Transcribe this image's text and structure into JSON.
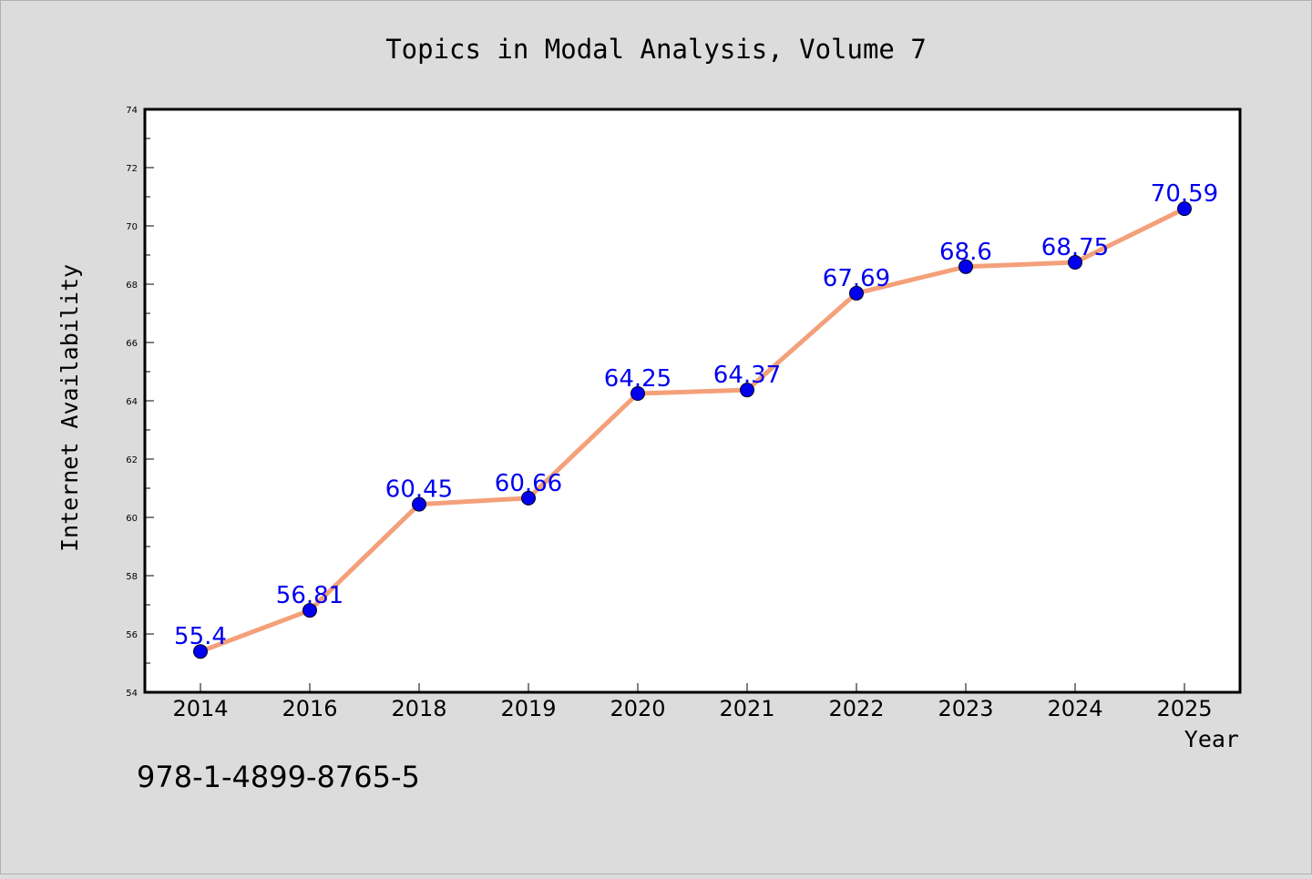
{
  "chart_data": {
    "type": "line",
    "title": "Topics in Modal Analysis, Volume 7",
    "xlabel": "Year",
    "ylabel": "Internet Availability",
    "categories": [
      "2014",
      "2016",
      "2018",
      "2019",
      "2020",
      "2021",
      "2022",
      "2023",
      "2024",
      "2025"
    ],
    "series": [
      {
        "values": [
          55.4,
          56.81,
          60.45,
          60.66,
          64.25,
          64.37,
          67.69,
          68.6,
          68.75,
          70.59
        ],
        "data_labels": [
          "55.4",
          "56.81",
          "60.45",
          "60.66",
          "64.25",
          "64.37",
          "67.69",
          "68.6",
          "68.75",
          "70.59"
        ],
        "line_color": "#f4a07a",
        "marker_color": "#0000ee",
        "label_color": "#0000ee"
      }
    ],
    "ylim": [
      54,
      74
    ],
    "yticks": [
      "54",
      "56",
      "58",
      "60",
      "62",
      "64",
      "66",
      "68",
      "70",
      "72",
      "74"
    ],
    "grid": false,
    "legend": "none"
  },
  "footer": {
    "isbn": "978-1-4899-8765-5"
  },
  "colors": {
    "background": "#dcdcdc",
    "plot_background": "#ffffff",
    "axis": "#000000"
  }
}
